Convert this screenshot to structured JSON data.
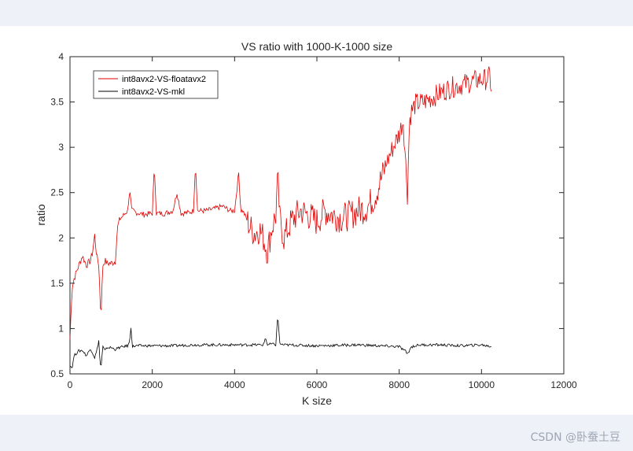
{
  "watermark": "CSDN @卧蚕土豆",
  "chart_data": {
    "type": "line",
    "title": "VS ratio with 1000-K-1000 size",
    "xlabel": "K size",
    "ylabel": "ratio",
    "xlim": [
      0,
      12000
    ],
    "ylim": [
      0.5,
      4
    ],
    "xticks": [
      0,
      2000,
      4000,
      6000,
      8000,
      10000,
      12000
    ],
    "yticks": [
      0.5,
      1,
      1.5,
      2,
      2.5,
      3,
      3.5,
      4
    ],
    "grid": false,
    "legend_position": "top-left",
    "series": [
      {
        "name": "int8avx2-VS-floatavx2",
        "color": "#e00000",
        "x": [
          0,
          50,
          100,
          200,
          300,
          400,
          500,
          550,
          600,
          650,
          700,
          750,
          800,
          850,
          900,
          1000,
          1100,
          1150,
          1200,
          1300,
          1400,
          1450,
          1500,
          1550,
          1600,
          1800,
          2000,
          2050,
          2100,
          2300,
          2500,
          2600,
          2700,
          2900,
          3000,
          3050,
          3100,
          3300,
          3500,
          3700,
          3900,
          4000,
          4100,
          4150,
          4200,
          4400,
          4500,
          4600,
          4700,
          4800,
          4900,
          5000,
          5050,
          5100,
          5200,
          5400,
          5600,
          5800,
          6000,
          6200,
          6400,
          6600,
          6800,
          7000,
          7200,
          7400,
          7600,
          7800,
          8000,
          8100,
          8200,
          8250,
          8300,
          8400,
          8600,
          8800,
          9000,
          9200,
          9400,
          9600,
          9800,
          10000,
          10100,
          10200,
          10250
        ],
        "y": [
          0.88,
          1.45,
          1.55,
          1.68,
          1.8,
          1.7,
          1.75,
          1.85,
          2.03,
          1.8,
          1.7,
          1.12,
          1.7,
          1.75,
          1.72,
          1.72,
          1.74,
          2.1,
          2.2,
          2.25,
          2.3,
          2.53,
          2.3,
          2.3,
          2.28,
          2.26,
          2.27,
          2.79,
          2.27,
          2.27,
          2.3,
          2.5,
          2.27,
          2.28,
          2.3,
          2.83,
          2.3,
          2.3,
          2.32,
          2.35,
          2.3,
          2.3,
          2.72,
          2.3,
          2.3,
          2.1,
          2.05,
          2.1,
          2.0,
          1.85,
          2.1,
          2.25,
          2.66,
          2.2,
          2.0,
          2.2,
          2.3,
          2.25,
          2.18,
          2.3,
          2.25,
          2.22,
          2.25,
          2.3,
          2.33,
          2.45,
          2.7,
          2.95,
          3.15,
          3.3,
          2.48,
          3.3,
          3.4,
          3.48,
          3.5,
          3.55,
          3.6,
          3.65,
          3.68,
          3.7,
          3.73,
          3.75,
          3.75,
          3.78,
          3.62
        ],
        "noise": 0.08
      },
      {
        "name": "int8avx2-VS-mkl",
        "color": "#000000",
        "x": [
          0,
          50,
          100,
          200,
          300,
          400,
          500,
          600,
          650,
          700,
          720,
          750,
          800,
          850,
          900,
          1000,
          1100,
          1200,
          1300,
          1400,
          1450,
          1480,
          1520,
          1600,
          2000,
          2500,
          3000,
          3500,
          4000,
          4500,
          4700,
          4750,
          4800,
          4900,
          5000,
          5050,
          5100,
          5200,
          6000,
          7000,
          8000,
          8150,
          8200,
          8300,
          8500,
          9000,
          9500,
          10000,
          10250
        ],
        "y": [
          0.6,
          0.56,
          0.7,
          0.75,
          0.76,
          0.7,
          0.78,
          0.68,
          0.75,
          0.87,
          0.7,
          0.55,
          0.8,
          0.75,
          0.79,
          0.79,
          0.77,
          0.79,
          0.8,
          0.81,
          0.85,
          1.02,
          0.8,
          0.81,
          0.81,
          0.81,
          0.82,
          0.82,
          0.82,
          0.82,
          0.82,
          0.9,
          0.82,
          0.83,
          0.82,
          1.15,
          0.83,
          0.82,
          0.81,
          0.82,
          0.8,
          0.75,
          0.72,
          0.8,
          0.82,
          0.82,
          0.81,
          0.82,
          0.8
        ],
        "noise": 0.015
      }
    ]
  }
}
